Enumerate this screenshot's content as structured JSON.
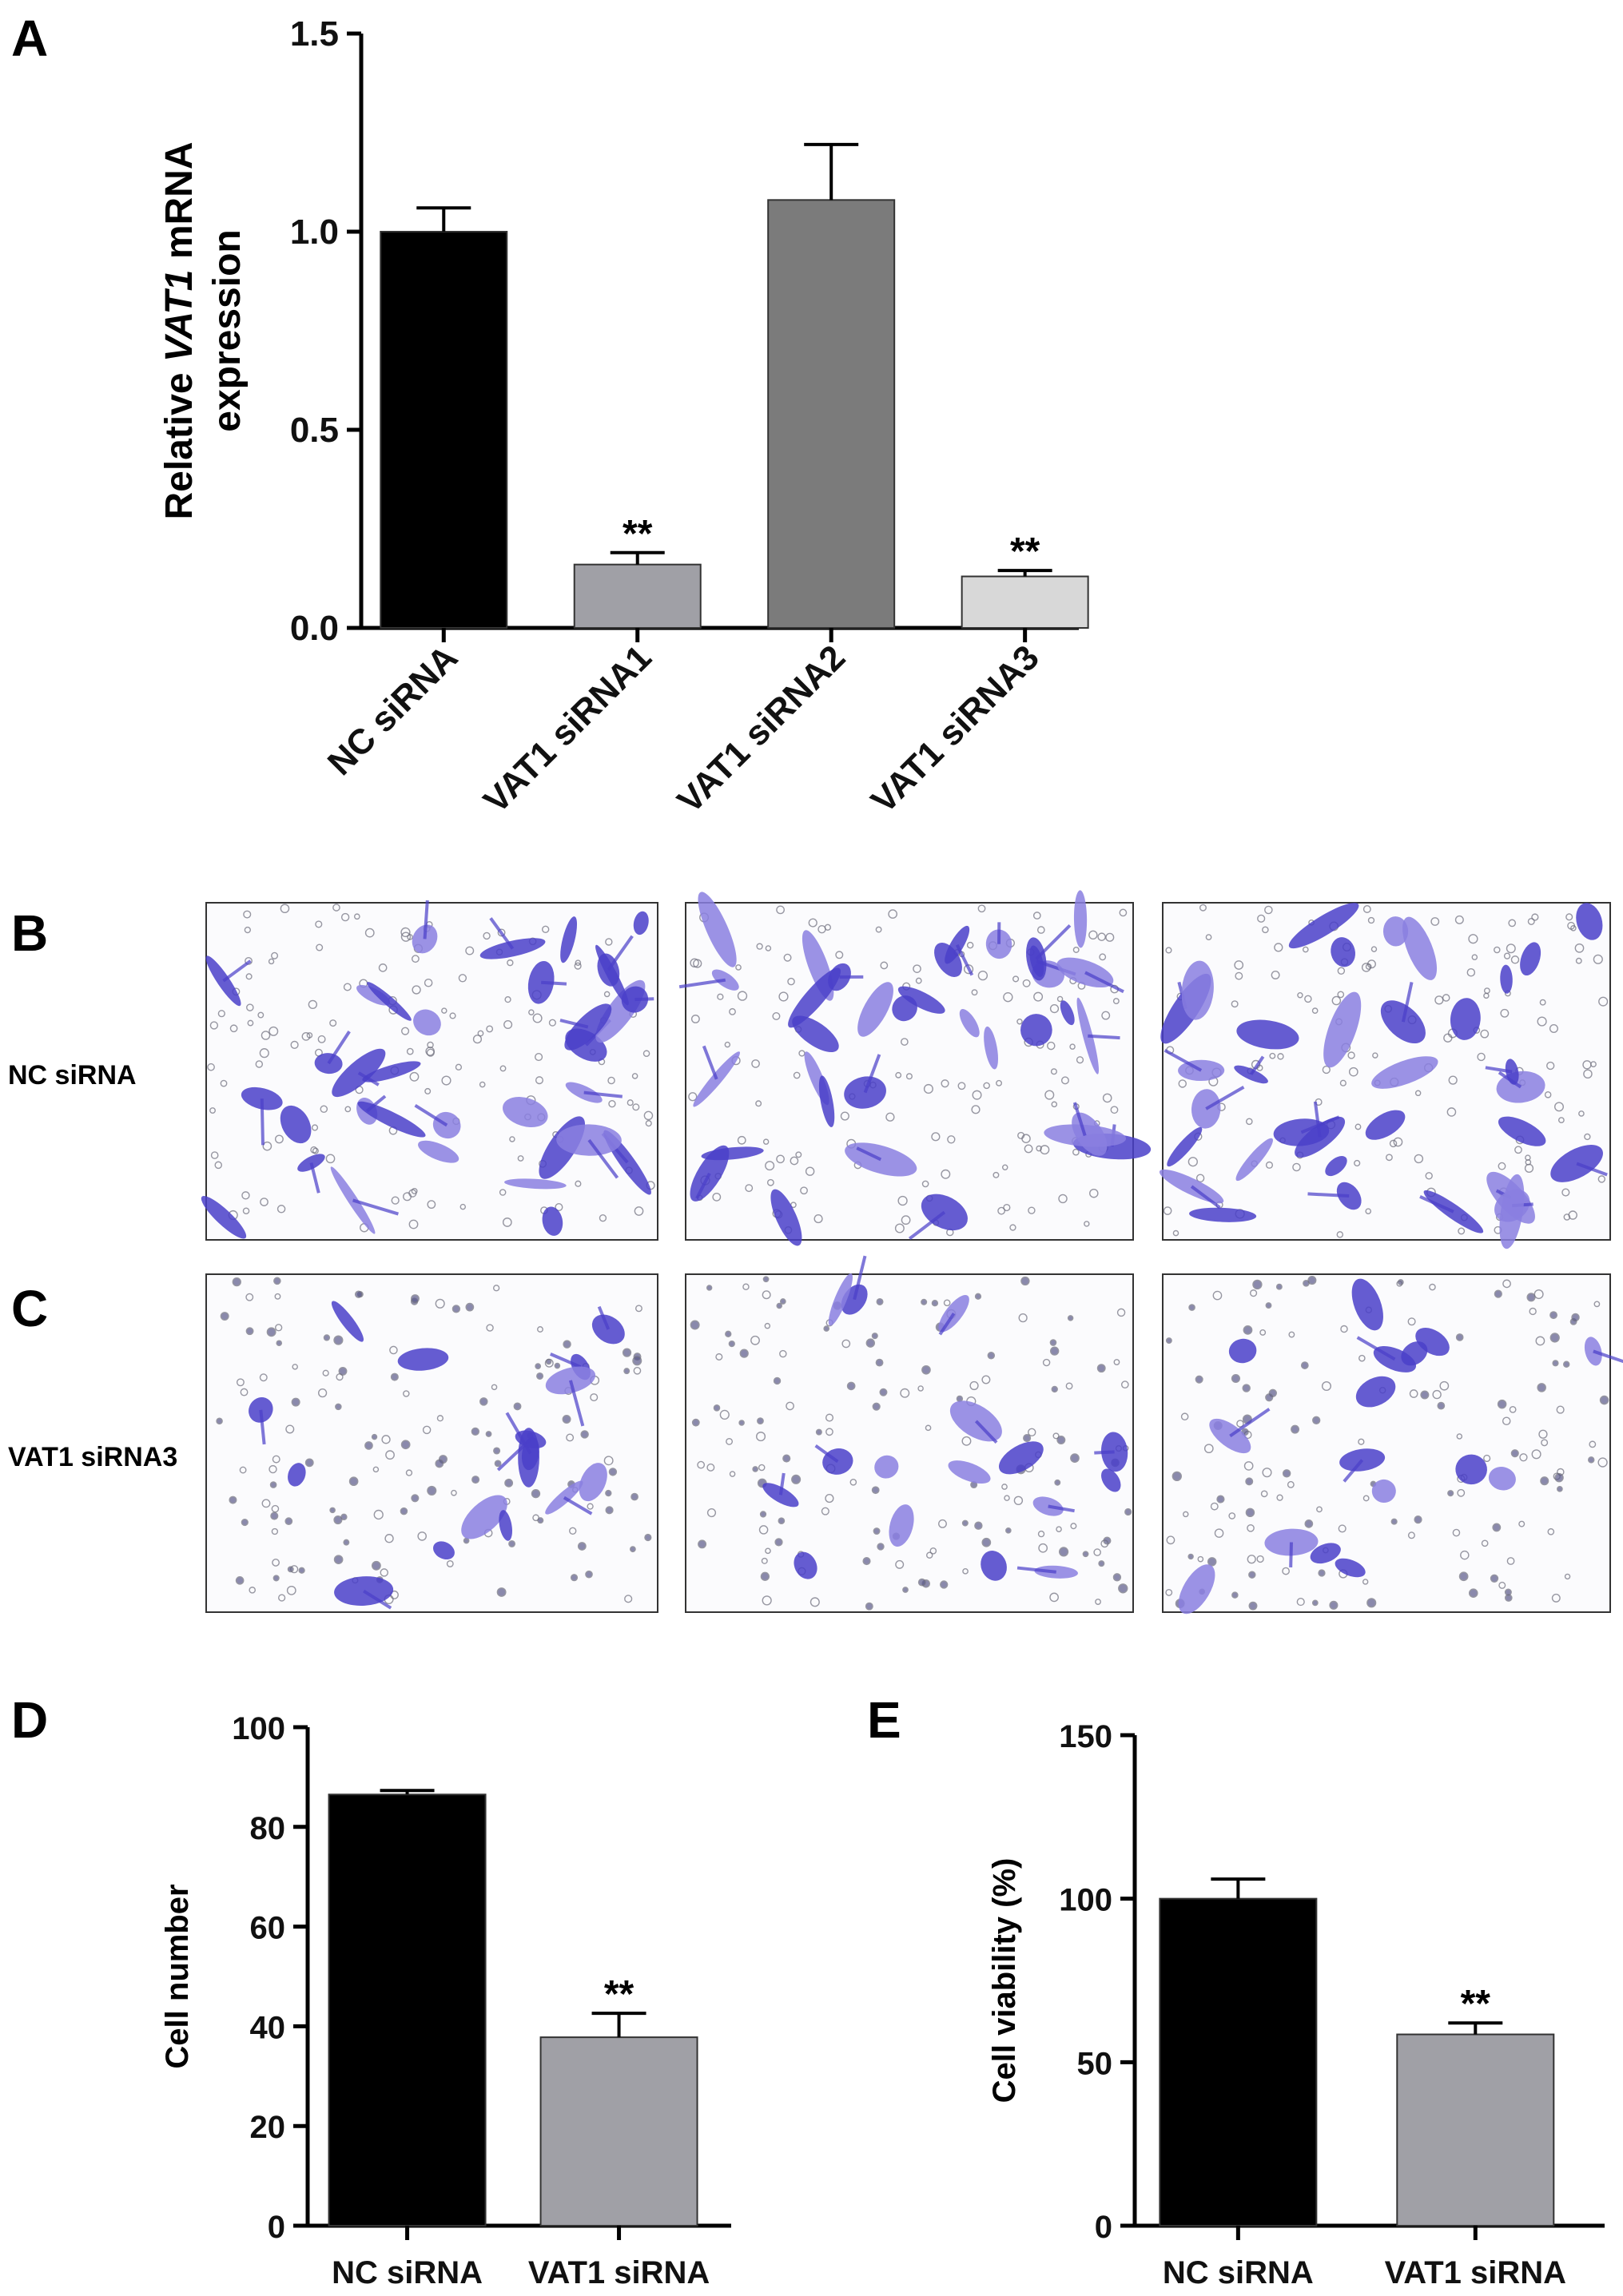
{
  "panels": {
    "A": {
      "letter": "A"
    },
    "B": {
      "letter": "B",
      "row_label": "NC siRNA"
    },
    "C": {
      "letter": "C",
      "row_label": "VAT1 siRNA3"
    },
    "D": {
      "letter": "D"
    },
    "E": {
      "letter": "E"
    }
  },
  "colors": {
    "black": "#000000",
    "gray": "#a0a0a6",
    "dark_gray": "#7b7b7b",
    "light_gray": "#d8d8d8",
    "stain": "#4a3fc9",
    "stain_light": "#8a7fe0"
  },
  "chart_data": [
    {
      "id": "A",
      "type": "bar",
      "title": "",
      "ylabel_parts": [
        "Relative ",
        "VAT1",
        " mRNA",
        "expression"
      ],
      "categories": [
        "NC siRNA",
        "VAT1 siRNA1",
        "VAT1 siRNA2",
        "VAT1 siRNA3"
      ],
      "values": [
        1.0,
        0.16,
        1.08,
        0.13
      ],
      "errors": [
        0.06,
        0.03,
        0.14,
        0.015
      ],
      "significance": [
        "",
        "**",
        "",
        "**"
      ],
      "bar_colors": [
        "#000000",
        "#a0a0a6",
        "#7b7b7b",
        "#d8d8d8"
      ],
      "ylim": [
        0,
        1.5
      ],
      "yticks": [
        "0.0",
        "0.5",
        "1.0",
        "1.5"
      ],
      "ytick_values": [
        0,
        0.5,
        1.0,
        1.5
      ]
    },
    {
      "id": "D",
      "type": "bar",
      "title": "",
      "ylabel": "Cell number",
      "categories": [
        "NC siRNA",
        "VAT1 siRNA"
      ],
      "values": [
        86.5,
        37.8
      ],
      "errors": [
        0.8,
        4.8
      ],
      "significance": [
        "",
        "**"
      ],
      "bar_colors": [
        "#000000",
        "#a0a0a6"
      ],
      "ylim": [
        0,
        100
      ],
      "yticks": [
        "0",
        "20",
        "40",
        "60",
        "80",
        "100"
      ],
      "ytick_values": [
        0,
        20,
        40,
        60,
        80,
        100
      ]
    },
    {
      "id": "E",
      "type": "bar",
      "title": "",
      "ylabel": "Cell viability  (%)",
      "categories": [
        "NC siRNA",
        "VAT1 siRNA"
      ],
      "values": [
        100,
        58.5
      ],
      "errors": [
        6,
        3.5
      ],
      "significance": [
        "",
        "**"
      ],
      "bar_colors": [
        "#000000",
        "#a0a0a6"
      ],
      "ylim": [
        0,
        150
      ],
      "yticks": [
        "0",
        "50",
        "100",
        "150"
      ],
      "ytick_values": [
        0,
        50,
        100,
        150
      ]
    }
  ]
}
